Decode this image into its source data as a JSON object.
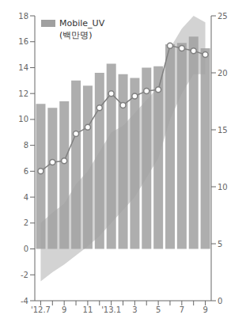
{
  "chart_data": {
    "type": "bar",
    "categories": [
      "'12.7",
      null,
      "9",
      null,
      "11",
      null,
      "'13.1",
      null,
      "3",
      null,
      "5",
      null,
      "7",
      null,
      "9"
    ],
    "series": [
      {
        "type": "area",
        "color": "#d3d3d3",
        "lower": [
          -2.5,
          -1.8,
          -1.2,
          -0.5,
          0.2,
          1.0,
          2.0,
          3.0,
          4.0,
          5.5,
          7.0,
          10.0,
          12.0,
          13.5,
          13.5
        ],
        "upper": [
          2.0,
          2.8,
          3.5,
          5.0,
          6.0,
          7.5,
          9.0,
          9.5,
          10.5,
          11.5,
          12.5,
          15.5,
          17.0,
          18.0,
          17.5
        ]
      },
      {
        "type": "bar",
        "name": "Mobile_UV",
        "color": "#a0a0a0",
        "values": [
          11.2,
          10.9,
          11.4,
          13.0,
          12.6,
          13.6,
          14.3,
          13.5,
          13.2,
          14.0,
          14.1,
          15.8,
          15.9,
          16.4,
          15.5
        ]
      },
      {
        "type": "line",
        "color": "#808080",
        "marker": "circle",
        "values": [
          6.0,
          6.7,
          6.8,
          8.9,
          9.4,
          10.9,
          12.0,
          11.1,
          11.8,
          12.2,
          12.3,
          15.7,
          15.5,
          15.3,
          15.0
        ]
      }
    ],
    "annotations": [
      "(백만명)"
    ],
    "ylim": [
      -4,
      18
    ],
    "yticks": [
      -4,
      -2,
      0,
      2,
      4,
      6,
      8,
      10,
      12,
      14,
      16,
      18
    ],
    "y2lim": [
      0,
      25
    ],
    "y2ticks": [
      0,
      5,
      10,
      15,
      20,
      25
    ],
    "legend": "upper left",
    "grid": false
  }
}
